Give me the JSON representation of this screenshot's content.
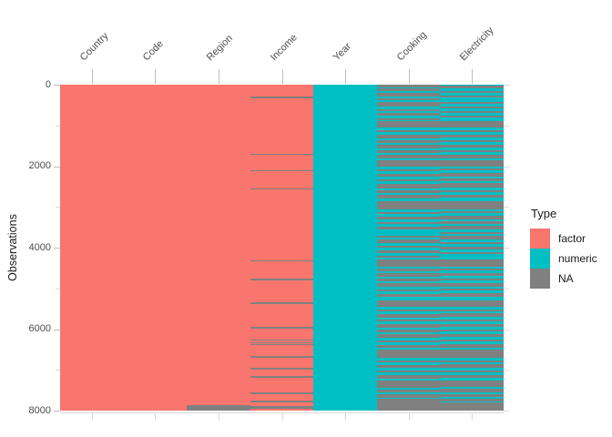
{
  "chart_data": {
    "type": "heatmap",
    "style": "visdat-missing-data-matrix",
    "title": "",
    "x_axis": {
      "position": "top",
      "labels": [
        "Country",
        "Code",
        "Region",
        "Income",
        "Year",
        "Cooking",
        "Electricity"
      ],
      "label_angle_deg": 45
    },
    "y_axis": {
      "title": "Observations",
      "range": [
        0,
        8000
      ],
      "direction": "downward",
      "major_ticks": [
        0,
        2000,
        4000,
        6000,
        8000
      ],
      "minor_ticks": [
        1000,
        3000,
        5000,
        7000
      ]
    },
    "legend": {
      "title": "Type",
      "position": "right",
      "entries": [
        {
          "label": "factor",
          "color": "#F8766D"
        },
        {
          "label": "numeric",
          "color": "#00BFC4"
        },
        {
          "label": "NA",
          "color": "#808080"
        }
      ]
    },
    "type_colors": {
      "factor": "#F8766D",
      "numeric": "#00BFC4",
      "NA": "#808080"
    },
    "columns": [
      {
        "name": "Country",
        "type": "factor",
        "na_segments": []
      },
      {
        "name": "Code",
        "type": "factor",
        "na_segments": []
      },
      {
        "name": "Region",
        "type": "factor",
        "na_segments": [
          [
            7870,
            8000
          ]
        ]
      },
      {
        "name": "Income",
        "type": "factor",
        "na_segments": [
          [
            300,
            330
          ],
          [
            1690,
            1720
          ],
          [
            2090,
            2125
          ],
          [
            2540,
            2575
          ],
          [
            4310,
            4345
          ],
          [
            4760,
            4795
          ],
          [
            5340,
            5375
          ],
          [
            5950,
            5985
          ],
          [
            6260,
            6290
          ],
          [
            6326,
            6356
          ],
          [
            6371,
            6401
          ],
          [
            6665,
            6700
          ],
          [
            6955,
            6990
          ],
          [
            7155,
            7190
          ],
          [
            7560,
            7595
          ],
          [
            7765,
            7800
          ],
          [
            7890,
            7960
          ]
        ]
      },
      {
        "name": "Year",
        "type": "numeric",
        "na_segments": []
      },
      {
        "name": "Cooking",
        "type": "numeric",
        "na_segments": [
          [
            0,
            60
          ],
          [
            100,
            150
          ],
          [
            200,
            280
          ],
          [
            330,
            380
          ],
          [
            430,
            540
          ],
          [
            600,
            650
          ],
          [
            700,
            760
          ],
          [
            820,
            870
          ],
          [
            900,
            1060
          ],
          [
            1120,
            1170
          ],
          [
            1230,
            1310
          ],
          [
            1370,
            1420
          ],
          [
            1480,
            1560
          ],
          [
            1620,
            1670
          ],
          [
            1730,
            1810
          ],
          [
            1850,
            2010
          ],
          [
            2070,
            2120
          ],
          [
            2180,
            2260
          ],
          [
            2320,
            2370
          ],
          [
            2430,
            2540
          ],
          [
            2600,
            2650
          ],
          [
            2710,
            2790
          ],
          [
            2850,
            3060
          ],
          [
            3120,
            3170
          ],
          [
            3230,
            3310
          ],
          [
            3370,
            3420
          ],
          [
            3480,
            3560
          ],
          [
            3700,
            3750
          ],
          [
            3810,
            3890
          ],
          [
            3950,
            4000
          ],
          [
            4060,
            4140
          ],
          [
            4200,
            4250
          ],
          [
            4300,
            4460
          ],
          [
            4520,
            4570
          ],
          [
            4630,
            4710
          ],
          [
            4770,
            4820
          ],
          [
            4880,
            4960
          ],
          [
            5020,
            5070
          ],
          [
            5130,
            5210
          ],
          [
            5300,
            5460
          ],
          [
            5520,
            5570
          ],
          [
            5630,
            5710
          ],
          [
            5770,
            5820
          ],
          [
            5880,
            5960
          ],
          [
            6020,
            6070
          ],
          [
            6130,
            6210
          ],
          [
            6270,
            6320
          ],
          [
            6380,
            6460
          ],
          [
            6500,
            6710
          ],
          [
            6770,
            6820
          ],
          [
            6880,
            6960
          ],
          [
            7020,
            7070
          ],
          [
            7130,
            7210
          ],
          [
            7270,
            7440
          ],
          [
            7480,
            7560
          ],
          [
            7600,
            7680
          ],
          [
            7720,
            8000
          ]
        ]
      },
      {
        "name": "Electricity",
        "type": "numeric",
        "na_segments": [
          [
            30,
            90
          ],
          [
            150,
            200
          ],
          [
            260,
            310
          ],
          [
            420,
            470
          ],
          [
            540,
            580
          ],
          [
            650,
            700
          ],
          [
            760,
            810
          ],
          [
            900,
            1060
          ],
          [
            1120,
            1160
          ],
          [
            1220,
            1300
          ],
          [
            1360,
            1410
          ],
          [
            1470,
            1550
          ],
          [
            1610,
            1660
          ],
          [
            1720,
            1800
          ],
          [
            1850,
            2010
          ],
          [
            2060,
            2110
          ],
          [
            2170,
            2250
          ],
          [
            2310,
            2360
          ],
          [
            2420,
            2530
          ],
          [
            2590,
            2640
          ],
          [
            2700,
            2780
          ],
          [
            2850,
            3060
          ],
          [
            3110,
            3160
          ],
          [
            3220,
            3300
          ],
          [
            3360,
            3410
          ],
          [
            3470,
            3550
          ],
          [
            3610,
            3660
          ],
          [
            3720,
            3800
          ],
          [
            3860,
            3910
          ],
          [
            3970,
            4050
          ],
          [
            4110,
            4160
          ],
          [
            4300,
            4460
          ],
          [
            4510,
            4560
          ],
          [
            4620,
            4700
          ],
          [
            4760,
            4810
          ],
          [
            4870,
            4950
          ],
          [
            5010,
            5060
          ],
          [
            5120,
            5200
          ],
          [
            5300,
            5460
          ],
          [
            5510,
            5560
          ],
          [
            5620,
            5700
          ],
          [
            5760,
            5810
          ],
          [
            5870,
            5950
          ],
          [
            6010,
            6060
          ],
          [
            6120,
            6200
          ],
          [
            6260,
            6310
          ],
          [
            6370,
            6450
          ],
          [
            6500,
            6710
          ],
          [
            6760,
            6810
          ],
          [
            6870,
            6950
          ],
          [
            7010,
            7060
          ],
          [
            7120,
            7200
          ],
          [
            7260,
            7430
          ],
          [
            7470,
            7550
          ],
          [
            7590,
            7670
          ],
          [
            7700,
            7770
          ],
          [
            7800,
            8000
          ]
        ]
      }
    ]
  }
}
